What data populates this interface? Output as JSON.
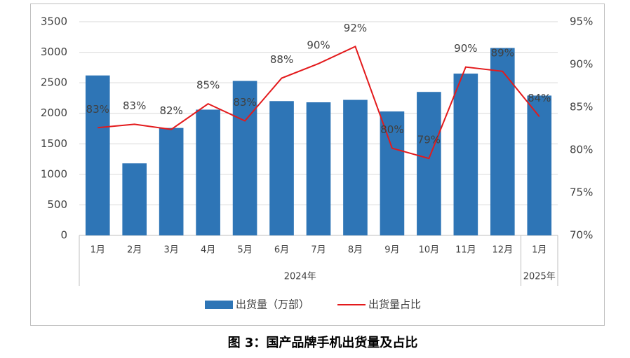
{
  "chart_data": {
    "type": "bar_line",
    "title": "图 3：国产品牌手机出货量及占比",
    "categories": [
      "1月",
      "2月",
      "3月",
      "4月",
      "5月",
      "6月",
      "7月",
      "8月",
      "9月",
      "10月",
      "11月",
      "12月",
      "1月"
    ],
    "groups": [
      "2024年",
      "2025年"
    ],
    "series": [
      {
        "name": "出货量（万部）",
        "type": "bar",
        "color": "#2e75b6",
        "values": [
          2620,
          1180,
          1760,
          2060,
          2530,
          2200,
          2180,
          2220,
          2030,
          2350,
          2650,
          3070,
          2290
        ]
      },
      {
        "name": "出货量占比",
        "type": "line",
        "axis": "y2",
        "color": "#e31a1c",
        "values": [
          82.6,
          83.0,
          82.4,
          85.4,
          83.4,
          88.4,
          90.1,
          92.1,
          80.2,
          79.0,
          89.7,
          89.2,
          83.9
        ],
        "value_labels": [
          "83%",
          "83%",
          "82%",
          "85%",
          "83%",
          "88%",
          "90%",
          "92%",
          "80%",
          "79%",
          "90%",
          "89%",
          "84%"
        ]
      }
    ],
    "ylim": [
      0,
      3500
    ],
    "yticks": [
      0,
      500,
      1000,
      1500,
      2000,
      2500,
      3000,
      3500
    ],
    "y2lim": [
      70,
      95
    ],
    "y2ticks": [
      {
        "value": 70,
        "label": "70%"
      },
      {
        "value": 75,
        "label": "75%"
      },
      {
        "value": 80,
        "label": "80%"
      },
      {
        "value": 85,
        "label": "85%"
      },
      {
        "value": 90,
        "label": "90%"
      },
      {
        "value": 95,
        "label": "95%"
      }
    ],
    "legend": "bottom"
  }
}
